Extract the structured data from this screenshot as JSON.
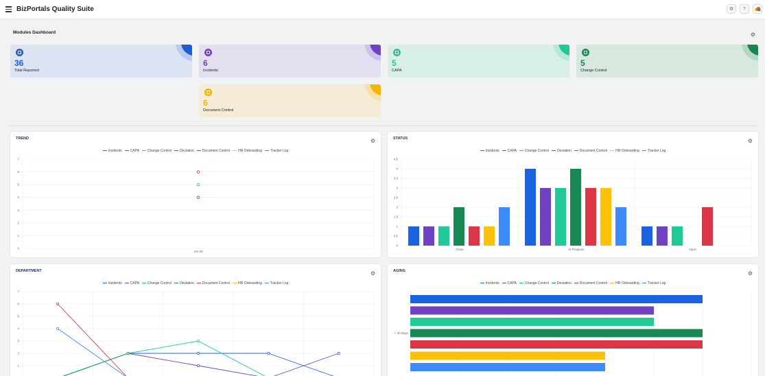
{
  "app": {
    "title": "BizPortals Quality Suite"
  },
  "topbar": {
    "icons": [
      "settings-icon",
      "help-icon",
      "cloud-icon"
    ],
    "help_label": "?"
  },
  "dashboard": {
    "title": "Modules Dashboard"
  },
  "modules": [
    {
      "count": "36",
      "label": "Total Reported",
      "color": "#1a5fd6",
      "bg": "#dce4f3"
    },
    {
      "count": "6",
      "label": "Incidents",
      "color": "#6f42c1",
      "bg": "#e2dff0"
    },
    {
      "count": "5",
      "label": "CAPA",
      "color": "#20c997",
      "bg": "#d7efe7"
    },
    {
      "count": "5",
      "label": "Change Control",
      "color": "#198754",
      "bg": "#d7e8df"
    },
    {
      "count": "6",
      "label": "Document Control",
      "color": "#f5b400",
      "bg": "#f4ecd6"
    }
  ],
  "legend": [
    {
      "name": "Incidents",
      "color": "#1a63e0"
    },
    {
      "name": "CAPA",
      "color": "#6f42c1"
    },
    {
      "name": "Change Control",
      "color": "#20c997"
    },
    {
      "name": "Deviation",
      "color": "#198754"
    },
    {
      "name": "Document Control",
      "color": "#dc3545"
    },
    {
      "name": "HR Onboarding",
      "color": "#ffc107"
    },
    {
      "name": "Tracker Log",
      "color": "#3d8bfd"
    }
  ],
  "charts": {
    "trend": {
      "title": "TREND"
    },
    "status": {
      "title": "STATUS"
    },
    "department": {
      "title": "DEPARTMENT"
    },
    "aging": {
      "title": "AGING"
    }
  },
  "chart_data": [
    {
      "id": "trend",
      "type": "scatter",
      "title": "TREND",
      "categories": [
        "Jun 25"
      ],
      "ylim": [
        0,
        7
      ],
      "yticks": [
        0,
        1,
        2,
        3,
        4,
        5,
        6,
        7
      ],
      "series": [
        {
          "name": "Incidents",
          "values": [
            4
          ]
        },
        {
          "name": "CAPA",
          "values": [
            null
          ]
        },
        {
          "name": "Change Control",
          "values": [
            5
          ]
        },
        {
          "name": "Deviation",
          "values": [
            null
          ]
        },
        {
          "name": "Document Control",
          "values": [
            6
          ]
        },
        {
          "name": "HR Onboarding",
          "values": [
            null
          ]
        },
        {
          "name": "Tracker Log",
          "values": [
            null
          ]
        }
      ]
    },
    {
      "id": "status",
      "type": "bar",
      "title": "STATUS",
      "categories": [
        "Close",
        "In Progress",
        "Open"
      ],
      "ylim": [
        0,
        4.5
      ],
      "yticks": [
        0,
        0.5,
        1,
        1.5,
        2,
        2.5,
        3,
        3.5,
        4,
        4.5
      ],
      "series": [
        {
          "name": "Incidents",
          "values": [
            1,
            4,
            1
          ]
        },
        {
          "name": "CAPA",
          "values": [
            1,
            3,
            1
          ]
        },
        {
          "name": "Change Control",
          "values": [
            1,
            3,
            1
          ]
        },
        {
          "name": "Deviation",
          "values": [
            2,
            4,
            null
          ]
        },
        {
          "name": "Document Control",
          "values": [
            1,
            3,
            2
          ]
        },
        {
          "name": "HR Onboarding",
          "values": [
            1,
            3,
            null
          ]
        },
        {
          "name": "Tracker Log",
          "values": [
            2,
            2,
            null
          ]
        }
      ]
    },
    {
      "id": "department",
      "type": "line",
      "title": "DEPARTMENT",
      "ylim": [
        0,
        7
      ],
      "yticks": [
        1,
        2,
        3,
        4,
        5,
        6,
        7
      ],
      "x_count": 5,
      "series": [
        {
          "name": "Incidents",
          "values": [
            0,
            2,
            2,
            2,
            0
          ]
        },
        {
          "name": "CAPA",
          "values": [
            null,
            2,
            1,
            0,
            2
          ]
        },
        {
          "name": "Change Control",
          "values": [
            0,
            2,
            3,
            0,
            null
          ]
        },
        {
          "name": "Deviation",
          "values": [
            0,
            2,
            null,
            null,
            null
          ]
        },
        {
          "name": "Document Control",
          "values": [
            6,
            0,
            null,
            null,
            null
          ]
        },
        {
          "name": "Tracker Log",
          "values": [
            4,
            0,
            null,
            null,
            null
          ]
        }
      ]
    },
    {
      "id": "aging",
      "type": "bar",
      "orientation": "horizontal",
      "title": "AGING",
      "categories": [
        "> 30 Days"
      ],
      "xlim": [
        0,
        7
      ],
      "series": [
        {
          "name": "Incidents",
          "values": [
            6
          ]
        },
        {
          "name": "CAPA",
          "values": [
            5
          ]
        },
        {
          "name": "Change Control",
          "values": [
            5
          ]
        },
        {
          "name": "Deviation",
          "values": [
            6
          ]
        },
        {
          "name": "Document Control",
          "values": [
            6
          ]
        },
        {
          "name": "HR Onboarding",
          "values": [
            4
          ]
        },
        {
          "name": "Tracker Log",
          "values": [
            4
          ]
        }
      ]
    }
  ]
}
